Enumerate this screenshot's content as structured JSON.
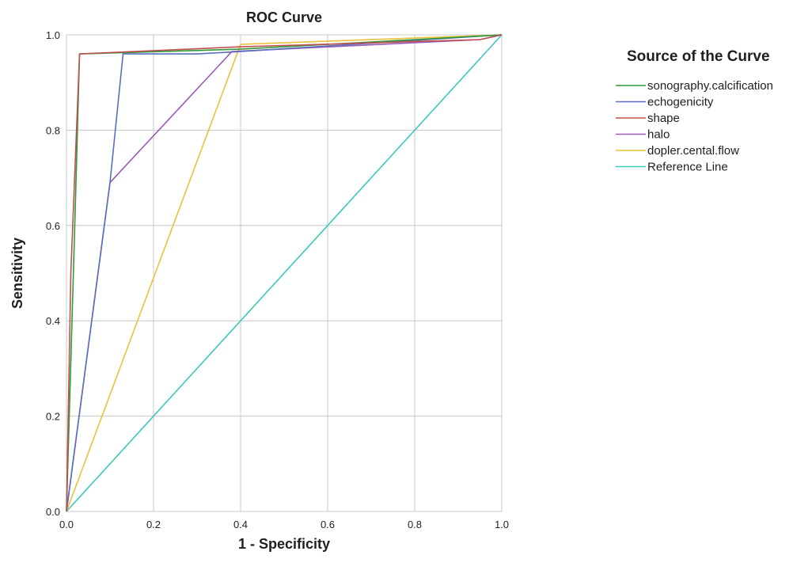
{
  "chart_data": {
    "type": "line",
    "title": "ROC Curve",
    "xlabel": "1 - Specificity",
    "ylabel": "Sensitivity",
    "xlim": [
      0,
      1
    ],
    "ylim": [
      0,
      1
    ],
    "xticks": [
      "0.0",
      "0.2",
      "0.4",
      "0.6",
      "0.8",
      "1.0"
    ],
    "yticks": [
      "0.0",
      "0.2",
      "0.4",
      "0.6",
      "0.8",
      "1.0"
    ],
    "grid": true,
    "legend_title": "Source of the Curve",
    "legend_position": "right",
    "series": [
      {
        "name": "sonography.calcification",
        "color": "#2e9b3a",
        "points": [
          [
            0,
            0
          ],
          [
            0.02,
            0.63
          ],
          [
            0.03,
            0.96
          ],
          [
            0.4,
            0.97
          ],
          [
            1,
            1
          ]
        ]
      },
      {
        "name": "echogenicity",
        "color": "#5a6fc0",
        "points": [
          [
            0,
            0
          ],
          [
            0.1,
            0.69
          ],
          [
            0.13,
            0.96
          ],
          [
            0.3,
            0.96
          ],
          [
            0.4,
            0.965
          ],
          [
            1,
            1
          ]
        ]
      },
      {
        "name": "shape",
        "color": "#c0504d",
        "points": [
          [
            0,
            0
          ],
          [
            0.01,
            0.5
          ],
          [
            0.03,
            0.96
          ],
          [
            0.4,
            0.975
          ],
          [
            0.95,
            0.99
          ],
          [
            1,
            1
          ]
        ]
      },
      {
        "name": "halo",
        "color": "#9b59b6",
        "points": [
          [
            0,
            0
          ],
          [
            0.1,
            0.69
          ],
          [
            0.38,
            0.965
          ],
          [
            0.95,
            0.99
          ],
          [
            1,
            1
          ]
        ]
      },
      {
        "name": "dopler.cental.flow",
        "color": "#ecc03a",
        "points": [
          [
            0,
            0
          ],
          [
            0.4,
            0.98
          ],
          [
            1,
            1
          ]
        ]
      },
      {
        "name": "Reference Line",
        "color": "#3cc8bb",
        "points": [
          [
            0,
            0
          ],
          [
            1,
            1
          ]
        ]
      }
    ]
  }
}
